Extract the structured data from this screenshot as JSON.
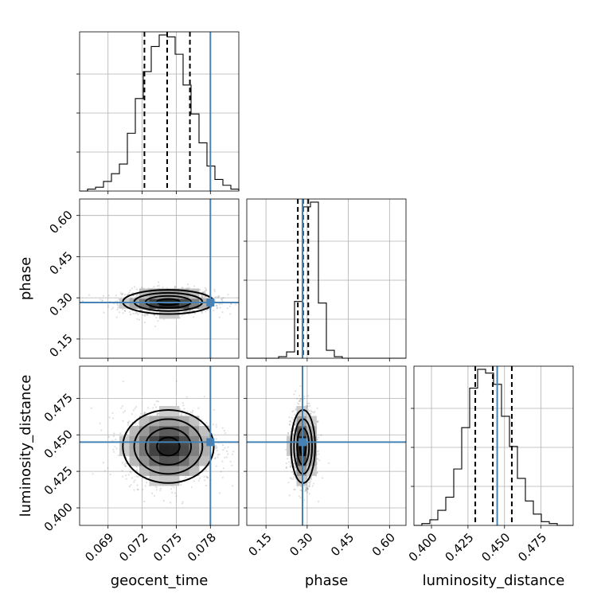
{
  "chart_data": {
    "type": "corner",
    "parameters": [
      {
        "name": "geocent_time",
        "range": [
          0.0665,
          0.0805
        ],
        "ticks": [
          "0.069",
          "0.072",
          "0.075",
          "0.078"
        ],
        "tick_values": [
          0.069,
          0.072,
          0.075,
          0.078
        ],
        "mean": 0.0743,
        "sd": 0.002,
        "quantiles": [
          0.0722,
          0.0742,
          0.0762
        ],
        "truth": 0.078
      },
      {
        "name": "phase",
        "range": [
          0.08,
          0.66
        ],
        "ticks": [
          "0.15",
          "0.30",
          "0.45",
          "0.60"
        ],
        "tick_values": [
          0.15,
          0.3,
          0.45,
          0.6
        ],
        "mean": 0.285,
        "sd": 0.022,
        "quantiles": [
          0.266,
          0.285,
          0.304
        ],
        "truth": 0.283
      },
      {
        "name": "luminosity_distance",
        "range": [
          0.388,
          0.497
        ],
        "ticks": [
          "0.400",
          "0.425",
          "0.450",
          "0.475"
        ],
        "tick_values": [
          0.4,
          0.425,
          0.45,
          0.475
        ],
        "mean": 0.442,
        "sd": 0.0125,
        "quantiles": [
          0.43,
          0.442,
          0.455
        ],
        "truth": 0.445
      }
    ],
    "hist_counts": [
      [
        0,
        1,
        2,
        5,
        9,
        14,
        30,
        48,
        62,
        75,
        81,
        80,
        71,
        55,
        40,
        25,
        13,
        6,
        3,
        1
      ],
      [
        0,
        0,
        0,
        0,
        1,
        4,
        36,
        96,
        99,
        35,
        5,
        1,
        0,
        0,
        0,
        0,
        0,
        0,
        0,
        0
      ],
      [
        0,
        1,
        3,
        8,
        15,
        30,
        52,
        73,
        83,
        81,
        75,
        58,
        42,
        25,
        13,
        6,
        2,
        1,
        0,
        0
      ]
    ],
    "colors": {
      "truth": "#4682b4",
      "contour": "#000000",
      "grid": "#b0b0b0"
    },
    "grid": true
  }
}
